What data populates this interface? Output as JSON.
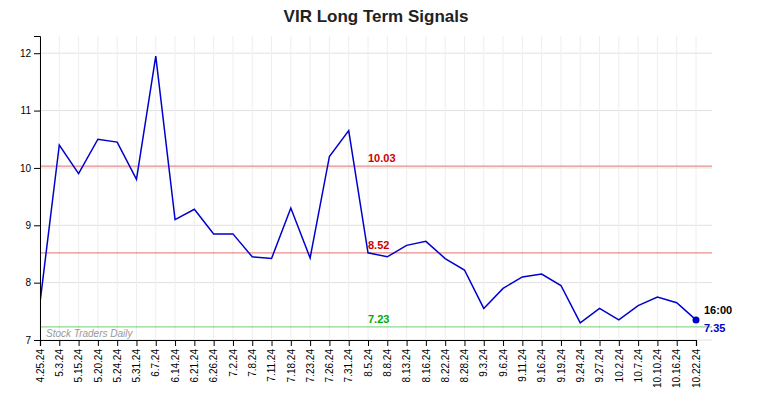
{
  "chart_data": {
    "type": "line",
    "title": "VIR Long Term Signals",
    "categories": [
      "4.25.24",
      "5.3.24",
      "5.15.24",
      "5.20.24",
      "5.24.24",
      "5.31.24",
      "6.7.24",
      "6.14.24",
      "6.21.24",
      "6.26.24",
      "7.2.24",
      "7.8.24",
      "7.11.24",
      "7.18.24",
      "7.23.24",
      "7.26.24",
      "7.31.24",
      "8.5.24",
      "8.8.24",
      "8.13.24",
      "8.16.24",
      "8.22.24",
      "8.28.24",
      "9.3.24",
      "9.6.24",
      "9.11.24",
      "9.16.24",
      "9.19.24",
      "9.24.24",
      "9.27.24",
      "10.2.24",
      "10.7.24",
      "10.10.24",
      "10.16.24",
      "10.22.24"
    ],
    "values": [
      7.65,
      10.4,
      9.9,
      10.5,
      10.45,
      9.8,
      11.95,
      9.1,
      9.28,
      8.85,
      8.85,
      8.45,
      8.42,
      9.3,
      8.43,
      10.2,
      10.65,
      8.52,
      8.45,
      8.65,
      8.72,
      8.42,
      8.22,
      7.55,
      7.9,
      8.1,
      8.15,
      7.95,
      7.3,
      7.55,
      7.35,
      7.6,
      7.75,
      7.65,
      7.35
    ],
    "color": "#0000cc",
    "reference_lines": [
      {
        "value": 10.03,
        "label": "10.03",
        "color": "#cc0000"
      },
      {
        "value": 8.52,
        "label": "8.52",
        "color": "#cc0000"
      },
      {
        "value": 7.23,
        "label": "7.23",
        "color": "#00aa00"
      }
    ],
    "last_time_label": "16:00",
    "last_value_label": "7.35",
    "watermark": "Stock Traders Daily",
    "ylim": [
      7.0,
      12.3
    ],
    "yticks": [
      7,
      8,
      9,
      10,
      11,
      12
    ],
    "grid": true
  }
}
